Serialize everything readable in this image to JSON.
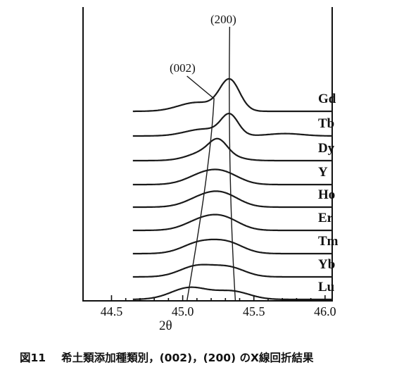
{
  "chart_data": {
    "type": "line",
    "title": "",
    "xlabel": "2θ",
    "ylabel": "",
    "xlim": [
      44.3,
      46.05
    ],
    "x_ticks": [
      "44.5",
      "45.0",
      "45.5",
      "46.0"
    ],
    "peak_labels": [
      "(002)",
      "(200)"
    ],
    "peak_positions": {
      "(002)": [
        45.03,
        45.2
      ],
      "(200)": [
        45.37,
        45.33
      ]
    },
    "series": [
      {
        "name": "Gd",
        "peaks": [
          {
            "x": 45.1,
            "h": 0.45,
            "w": 0.13
          },
          {
            "x": 45.33,
            "h": 1.55,
            "w": 0.07
          }
        ],
        "tail": {
          "x": 45.75,
          "h": 0.0,
          "w": 0.1
        }
      },
      {
        "name": "Tb",
        "peaks": [
          {
            "x": 45.15,
            "h": 0.35,
            "w": 0.13
          },
          {
            "x": 45.33,
            "h": 1.0,
            "w": 0.06
          }
        ],
        "tail": {
          "x": 45.72,
          "h": 0.12,
          "w": 0.12
        }
      },
      {
        "name": "Dy",
        "peaks": [
          {
            "x": 45.2,
            "h": 0.55,
            "w": 0.13
          },
          {
            "x": 45.25,
            "h": 0.6,
            "w": 0.06
          }
        ],
        "tail": {
          "x": 45.6,
          "h": 0.0,
          "w": 0.1
        }
      },
      {
        "name": "Y",
        "peaks": [
          {
            "x": 45.15,
            "h": 0.5,
            "w": 0.12
          },
          {
            "x": 45.3,
            "h": 0.45,
            "w": 0.11
          }
        ],
        "tail": {
          "x": 45.6,
          "h": 0.0,
          "w": 0.1
        }
      },
      {
        "name": "Ho",
        "peaks": [
          {
            "x": 45.15,
            "h": 0.5,
            "w": 0.12
          },
          {
            "x": 45.3,
            "h": 0.5,
            "w": 0.11
          }
        ],
        "tail": {
          "x": 45.6,
          "h": 0.0,
          "w": 0.1
        }
      },
      {
        "name": "Er",
        "peaks": [
          {
            "x": 45.14,
            "h": 0.52,
            "w": 0.12
          },
          {
            "x": 45.3,
            "h": 0.5,
            "w": 0.11
          }
        ],
        "tail": {
          "x": 45.6,
          "h": 0.0,
          "w": 0.1
        }
      },
      {
        "name": "Tm",
        "peaks": [
          {
            "x": 45.12,
            "h": 0.55,
            "w": 0.12
          },
          {
            "x": 45.32,
            "h": 0.5,
            "w": 0.11
          }
        ],
        "tail": {
          "x": 45.6,
          "h": 0.0,
          "w": 0.1
        }
      },
      {
        "name": "Yb",
        "peaks": [
          {
            "x": 45.1,
            "h": 0.55,
            "w": 0.12
          },
          {
            "x": 45.33,
            "h": 0.45,
            "w": 0.11
          }
        ],
        "tail": {
          "x": 45.6,
          "h": 0.0,
          "w": 0.1
        }
      },
      {
        "name": "Lu",
        "peaks": [
          {
            "x": 45.05,
            "h": 0.6,
            "w": 0.13
          },
          {
            "x": 45.35,
            "h": 0.4,
            "w": 0.12
          }
        ],
        "tail": {
          "x": 45.6,
          "h": 0.0,
          "w": 0.1
        }
      }
    ],
    "grid": false
  },
  "caption": {
    "figure_number": "図11",
    "text": "希土類添加種類別，(002)，(200) のX線回折結果"
  }
}
